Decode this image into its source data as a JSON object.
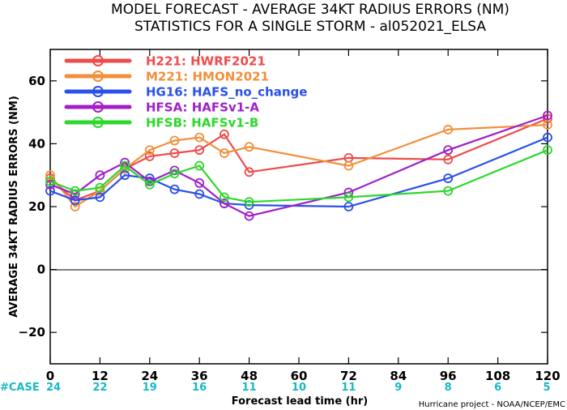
{
  "title_line1": "MODEL FORECAST - AVERAGE 34KT RADIUS ERRORS (NM)",
  "title_line2": "STATISTICS FOR A SINGLE STORM - al052021_ELSA",
  "case_header": "#CASE",
  "credit": "Hurricane project - NOAA/NCEP/EMC",
  "chart_data": {
    "type": "line",
    "title": "MODEL FORECAST - AVERAGE 34KT RADIUS ERRORS (NM)",
    "subtitle": "STATISTICS FOR A SINGLE STORM - al052021_ELSA",
    "xlabel": "Forecast lead time (hr)",
    "ylabel": "AVERAGE 34KT RADIUS ERRORS (NM)",
    "xlim": [
      0,
      120
    ],
    "ylim": [
      -30,
      70
    ],
    "xticks": [
      0,
      12,
      24,
      36,
      48,
      60,
      72,
      84,
      96,
      108,
      120
    ],
    "yticks": [
      -20,
      0,
      20,
      40,
      60
    ],
    "grid": false,
    "zero_line": true,
    "legend_position": "top-left",
    "case_counts": [
      24,
      22,
      19,
      16,
      11,
      10,
      11,
      9,
      8,
      6,
      5
    ],
    "series": [
      {
        "code": "H221",
        "name": "HWRF2021",
        "color": "#ef4b4b",
        "x": [
          0,
          6,
          12,
          18,
          24,
          30,
          36,
          42,
          48,
          72,
          96,
          120
        ],
        "y": [
          29,
          22,
          25,
          32,
          36,
          37,
          38,
          43,
          31,
          35.5,
          35,
          48
        ]
      },
      {
        "code": "M221",
        "name": "HMON2021",
        "color": "#f0903c",
        "x": [
          0,
          6,
          12,
          18,
          24,
          30,
          36,
          42,
          48,
          72,
          96,
          120
        ],
        "y": [
          30,
          20,
          25,
          32,
          38,
          41,
          42,
          37,
          39,
          33,
          44.5,
          46
        ]
      },
      {
        "code": "HG16",
        "name": "HAFS_no_change",
        "color": "#2b50e8",
        "x": [
          0,
          6,
          12,
          18,
          24,
          30,
          36,
          42,
          48,
          72,
          96,
          120
        ],
        "y": [
          25,
          22,
          23,
          30,
          29,
          25.5,
          24,
          21,
          20.5,
          20,
          29,
          42
        ]
      },
      {
        "code": "HFSA",
        "name": "HAFSv1-A",
        "color": "#a020c8",
        "x": [
          0,
          6,
          12,
          18,
          24,
          30,
          36,
          42,
          48,
          72,
          96,
          120
        ],
        "y": [
          27,
          24,
          30,
          34,
          28,
          31.5,
          27.5,
          21,
          17,
          24.5,
          38,
          49
        ]
      },
      {
        "code": "HFSB",
        "name": "HAFSv1-B",
        "color": "#2bd82b",
        "x": [
          0,
          6,
          12,
          18,
          24,
          30,
          36,
          42,
          48,
          72,
          96,
          120
        ],
        "y": [
          28,
          25,
          26,
          33,
          27,
          30.5,
          33,
          23,
          21.5,
          23,
          25,
          38
        ]
      }
    ]
  }
}
